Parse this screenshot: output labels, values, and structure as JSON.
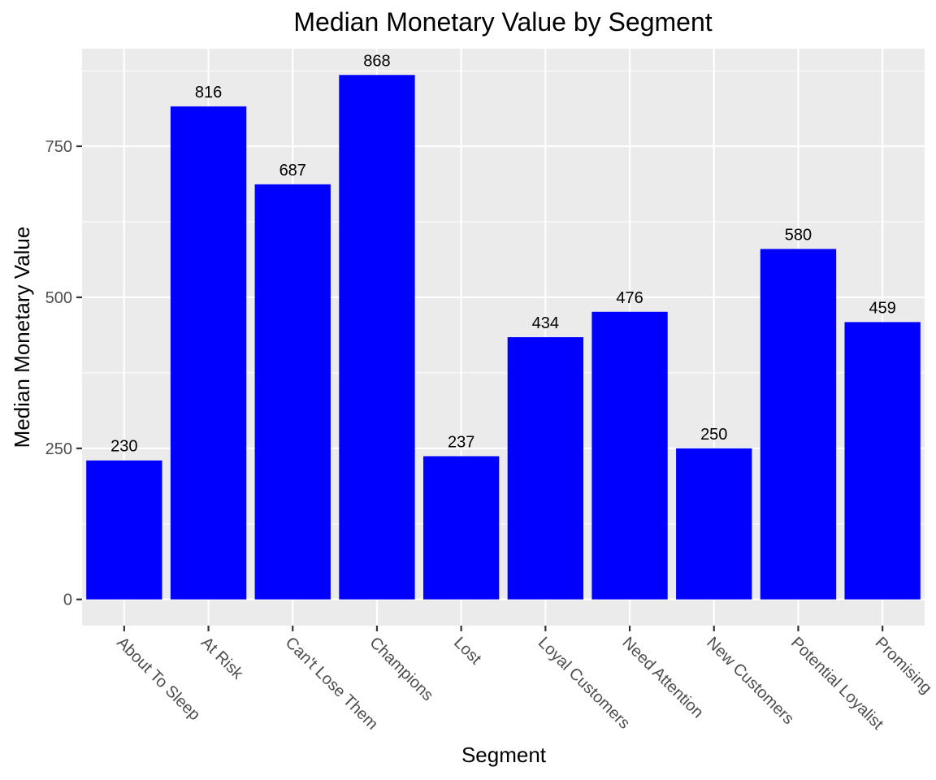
{
  "chart_data": {
    "type": "bar",
    "title": "Median Monetary Value  by Segment",
    "xlabel": "Segment",
    "ylabel": "Median Monetary Value",
    "categories": [
      "About To Sleep",
      "At Risk",
      "Can't Lose Them",
      "Champions",
      "Lost",
      "Loyal Customers",
      "Need Attention",
      "New Customers",
      "Potential Loyalist",
      "Promising"
    ],
    "values": [
      230,
      816,
      687,
      868,
      237,
      434,
      476,
      250,
      580,
      459
    ],
    "data_labels": [
      "230",
      "816",
      "687",
      "868",
      "237",
      "434",
      "476",
      "250",
      "580",
      "459"
    ],
    "y_ticks": [
      0,
      250,
      500,
      750
    ],
    "y_tick_labels": [
      "0",
      "250",
      "500",
      "750"
    ],
    "ylim": [
      -43.4,
      911.4
    ],
    "grid": true,
    "bar_color": "#0000ff",
    "panel_background": "#ebebeb",
    "grid_color": "#ffffff"
  }
}
